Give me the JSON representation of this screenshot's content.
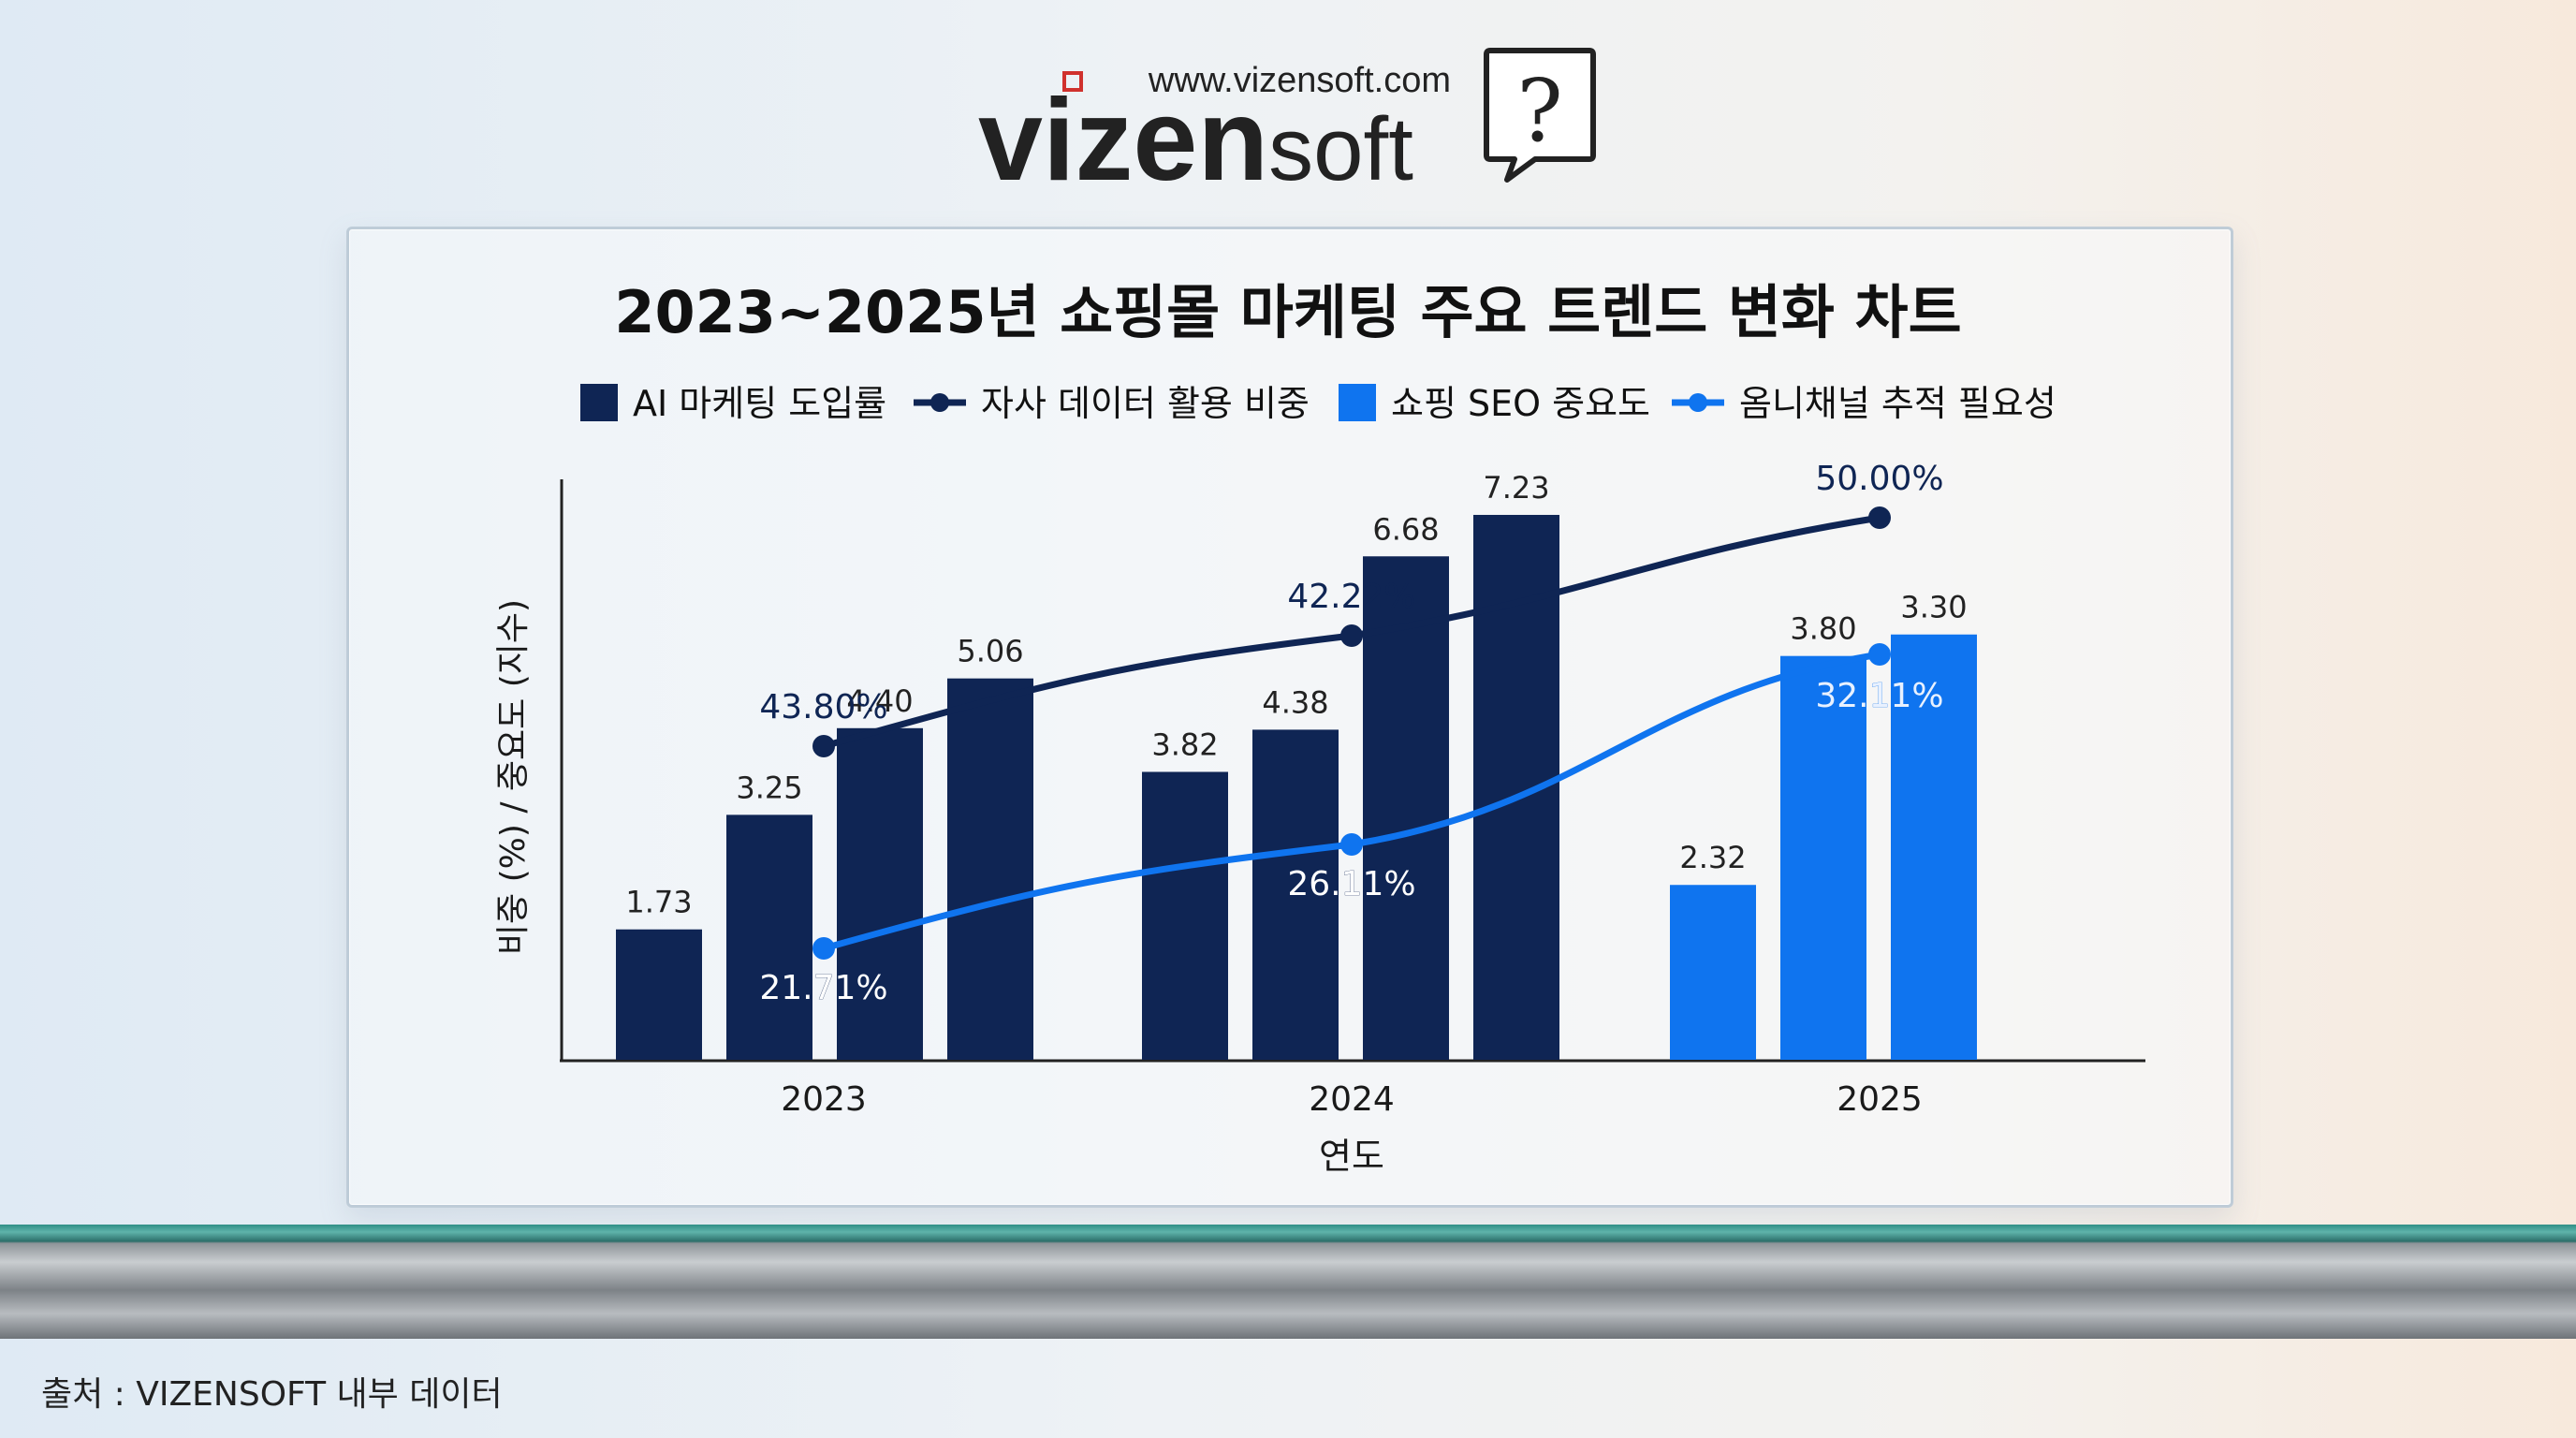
{
  "logo": {
    "url_text": "www.vizensoft.com",
    "brand_bold": "vizen",
    "brand_light": "soft",
    "icon": "speech-bubble-question-icon"
  },
  "source_note": "출처 : VIZENSOFT 내부 데이터",
  "colors": {
    "navy": "#0f2554",
    "blue": "#0f74ef",
    "text": "#1a1a1a",
    "logo_red": "#d0312d"
  },
  "chart_data": {
    "type": "bar",
    "title": "2023~2025년 쇼핑몰 마케팅 주요 트렌드 변화 차트",
    "xlabel": "연도",
    "ylabel": "비중 (%) / 중요도 (지수)",
    "categories": [
      "2023",
      "2024",
      "2025"
    ],
    "legend_position": "top",
    "grid": false,
    "bar_groups": [
      {
        "category": "2023",
        "series": "AI 마케팅 도입률",
        "values": [
          1.73,
          3.25,
          4.4,
          5.06
        ]
      },
      {
        "category": "2024",
        "series": "AI 마케팅 도입률",
        "values": [
          3.82,
          4.38,
          6.68,
          7.23
        ]
      },
      {
        "category": "2025",
        "series": "쇼핑 SEO 중요도",
        "values": [
          2.32,
          3.8,
          3.3
        ]
      }
    ],
    "bar_labels": {
      "2023": [
        "1.73",
        "3.25",
        "4.40",
        "5.06"
      ],
      "2024": [
        "3.82",
        "4.38",
        "6.68",
        "7.23"
      ],
      "2025": [
        "2.32",
        "3.80",
        "3.30"
      ]
    },
    "lines": [
      {
        "name": "자사 데이터 활용 비중",
        "values": [
          43.8,
          42.22,
          50.0
        ],
        "labels": [
          "43.80%",
          "42.22%",
          "50.00%"
        ]
      },
      {
        "name": "옴니채널 추적 필요성",
        "values": [
          21.71,
          26.11,
          32.11
        ],
        "labels": [
          "21.71%",
          "26.11%",
          "32.11%"
        ]
      }
    ],
    "legend": [
      {
        "name": "AI 마케팅 도입률",
        "kind": "bar",
        "color": "#0f2554"
      },
      {
        "name": "자사 데이터 활용 비중",
        "kind": "line",
        "color": "#0f2554"
      },
      {
        "name": "쇼핑 SEO 중요도",
        "kind": "bar",
        "color": "#0f74ef"
      },
      {
        "name": "옴니채널 추적 필요성",
        "kind": "line",
        "color": "#0f74ef"
      }
    ]
  }
}
